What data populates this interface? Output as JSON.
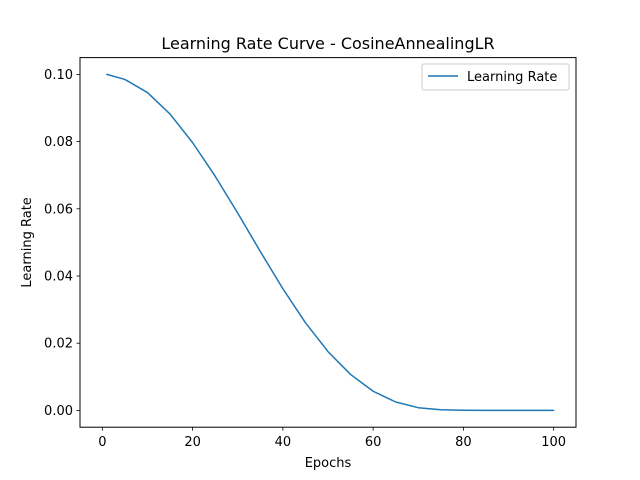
{
  "chart_data": {
    "type": "line",
    "title": "Learning Rate Curve - CosineAnnealingLR",
    "xlabel": "Epochs",
    "ylabel": "Learning Rate",
    "xlim": [
      -4.95,
      104.95
    ],
    "ylim": [
      -0.005,
      0.105
    ],
    "xticks": [
      0,
      20,
      40,
      60,
      80,
      100
    ],
    "xtick_labels": [
      "0",
      "20",
      "40",
      "60",
      "80",
      "100"
    ],
    "yticks": [
      0.0,
      0.02,
      0.04,
      0.06,
      0.08,
      0.1
    ],
    "ytick_labels": [
      "0.00",
      "0.02",
      "0.04",
      "0.06",
      "0.08",
      "0.10"
    ],
    "grid": false,
    "legend_position": "top-right",
    "series": [
      {
        "name": "Learning Rate",
        "color": "#1f77b4",
        "x": [
          1,
          5,
          10,
          15,
          20,
          25,
          30,
          35,
          40,
          45,
          50,
          55,
          60,
          65,
          70,
          75,
          80,
          85,
          90,
          95,
          100
        ],
        "values": [
          0.1,
          0.0985,
          0.0946,
          0.0882,
          0.0797,
          0.0697,
          0.0587,
          0.0473,
          0.0362,
          0.0261,
          0.0175,
          0.0107,
          0.0057,
          0.0025,
          0.0008,
          0.0002,
          3e-05,
          0.0,
          0.0,
          0.0,
          0.0
        ]
      }
    ]
  }
}
